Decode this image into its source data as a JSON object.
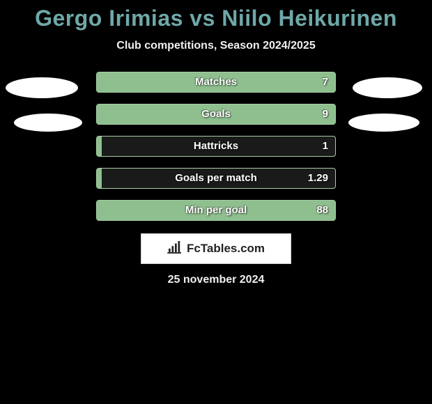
{
  "title": "Gergo Irimias vs Niilo Heikurinen",
  "subtitle": "Club competitions, Season 2024/2025",
  "colors": {
    "background": "#000000",
    "title_color": "#6fa8a8",
    "text_color": "#f0f0f0",
    "bar_fill": "#8fbf8f",
    "bar_border": "#a4cfa4",
    "bar_bg": "#1a1a1a",
    "oval": "#ffffff",
    "logo_bg": "#ffffff",
    "logo_text": "#222222"
  },
  "stats": [
    {
      "label": "Matches",
      "value": "7",
      "fill_pct": 100
    },
    {
      "label": "Goals",
      "value": "9",
      "fill_pct": 100
    },
    {
      "label": "Hattricks",
      "value": "1",
      "fill_pct": 2
    },
    {
      "label": "Goals per match",
      "value": "1.29",
      "fill_pct": 2
    },
    {
      "label": "Min per goal",
      "value": "88",
      "fill_pct": 100
    }
  ],
  "logo": {
    "icon_name": "bar-chart-icon",
    "text": "FcTables.com"
  },
  "date": "25 november 2024"
}
